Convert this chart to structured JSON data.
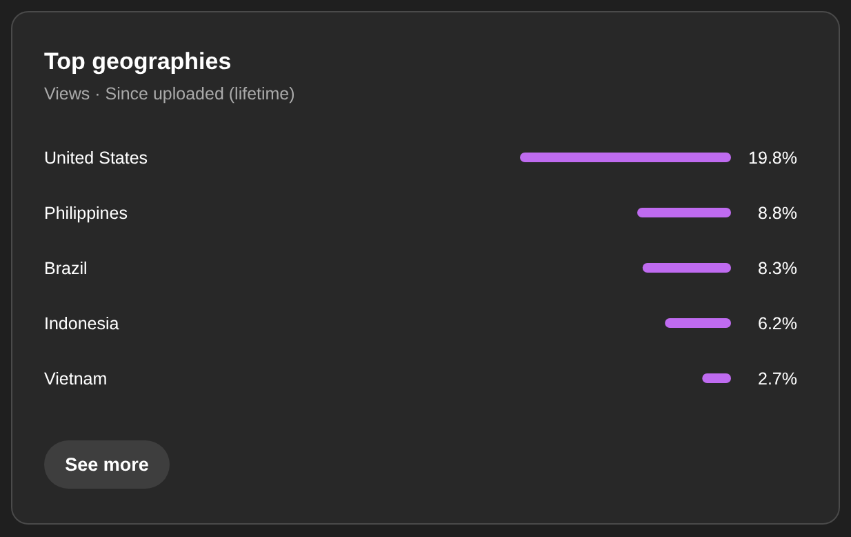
{
  "chart_data": {
    "type": "bar",
    "orientation": "horizontal",
    "title": "Top geographies",
    "subtitle": "Views · Since uploaded (lifetime)",
    "categories": [
      "United States",
      "Philippines",
      "Brazil",
      "Indonesia",
      "Vietnam"
    ],
    "values": [
      19.8,
      8.8,
      8.3,
      6.2,
      2.7
    ],
    "color": "#bf6bf0",
    "data_labels": true,
    "value_labels": [
      "19.8%",
      "8.8%",
      "8.3%",
      "6.2%",
      "2.7%"
    ],
    "annotations": [
      "See more"
    ]
  }
}
